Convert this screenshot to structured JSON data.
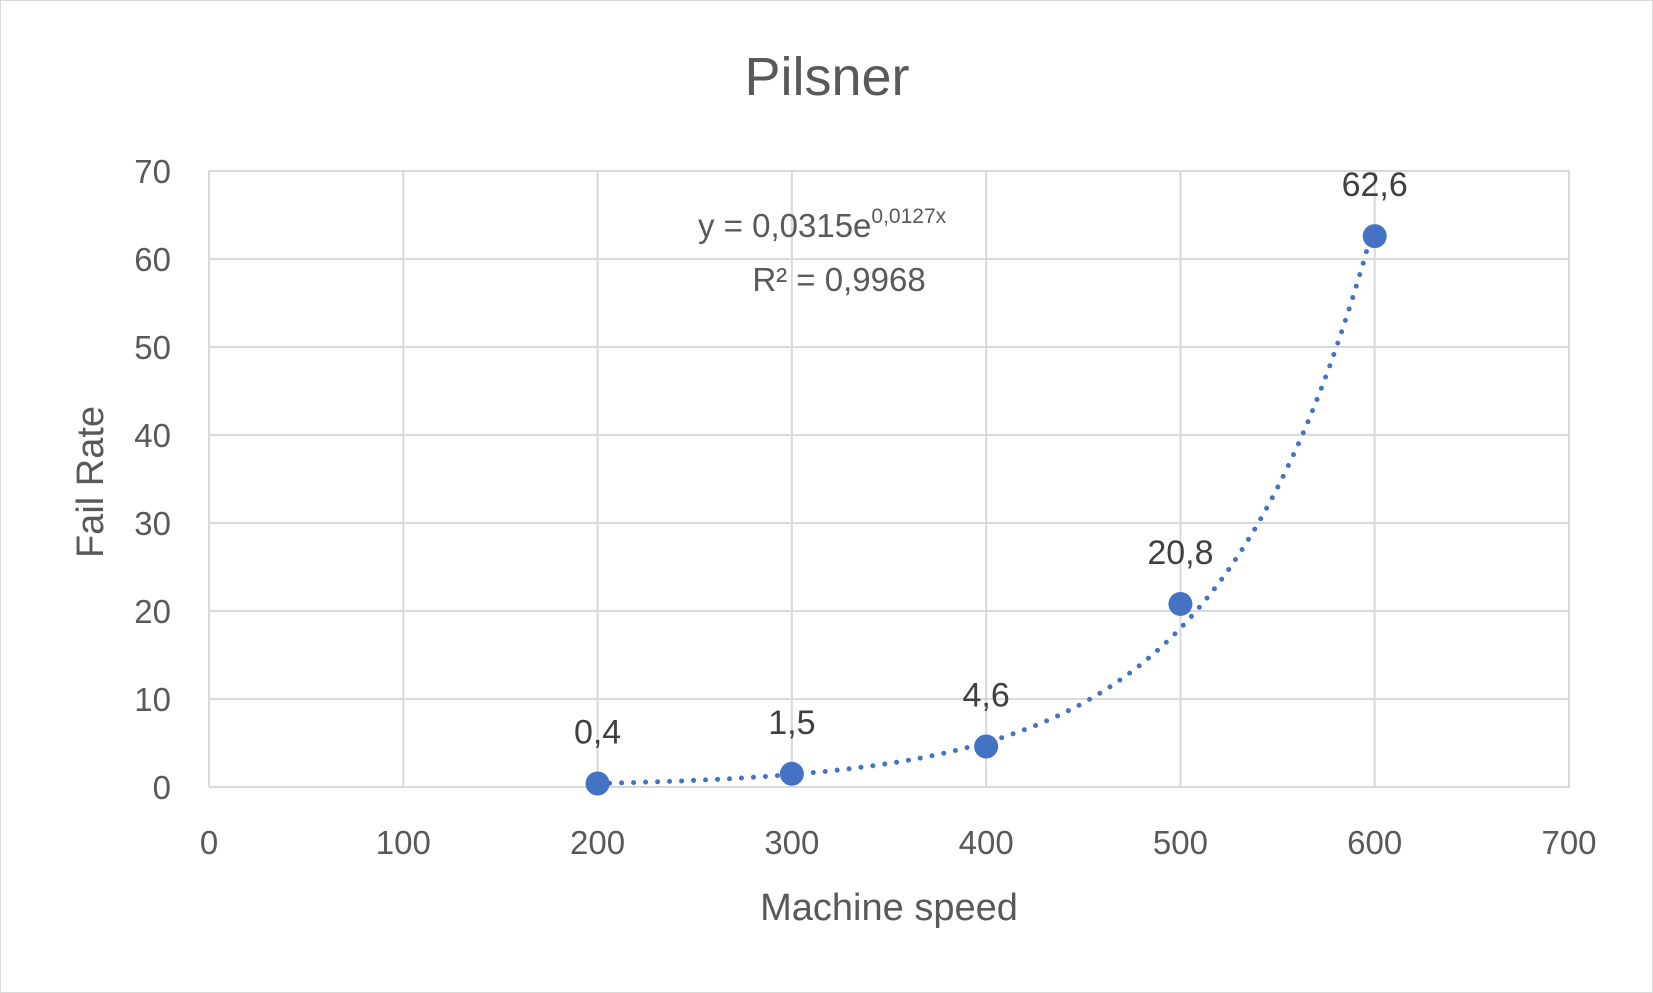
{
  "chart_data": {
    "type": "scatter",
    "title": "Pilsner",
    "xlabel": "Machine speed",
    "ylabel": "Fail Rate",
    "xlim": [
      0,
      700
    ],
    "ylim": [
      0,
      70
    ],
    "x_ticks": [
      "0",
      "100",
      "200",
      "300",
      "400",
      "500",
      "600",
      "700"
    ],
    "y_ticks": [
      "0",
      "10",
      "20",
      "30",
      "40",
      "50",
      "60",
      "70"
    ],
    "grid": true,
    "legend": "none",
    "series": [
      {
        "x": [
          200,
          300,
          400,
          500,
          600
        ],
        "y": [
          0.4,
          1.5,
          4.6,
          20.8,
          62.6
        ],
        "data_labels": [
          "0,4",
          "1,5",
          "4,6",
          "20,8",
          "62,6"
        ],
        "color": "#4472c4"
      }
    ],
    "trendline": {
      "type": "exponential",
      "a": 0.0315,
      "b": 0.0127,
      "style": "dotted",
      "color": "#4472c4",
      "equation_prefix": "y = 0,0315e",
      "equation_exponent": "0,0127x",
      "r_squared": "R² = 0,9968"
    }
  }
}
